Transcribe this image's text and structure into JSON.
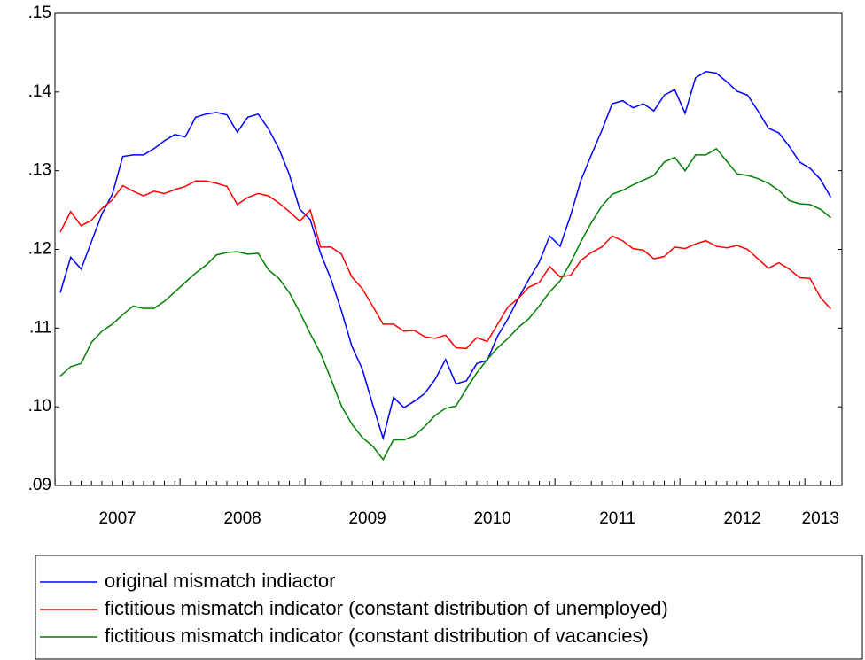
{
  "chart_data": {
    "type": "line",
    "categories": [
      null,
      null,
      null,
      null,
      null,
      null,
      "2007",
      null,
      null,
      null,
      null,
      null,
      null,
      null,
      null,
      null,
      null,
      null,
      "2008",
      null,
      null,
      null,
      null,
      null,
      null,
      null,
      null,
      null,
      null,
      null,
      "2009",
      null,
      null,
      null,
      null,
      null,
      null,
      null,
      null,
      null,
      null,
      null,
      "2010",
      null,
      null,
      null,
      null,
      null,
      null,
      null,
      null,
      null,
      null,
      null,
      "2011",
      null,
      null,
      null,
      null,
      null,
      null,
      null,
      null,
      null,
      null,
      null,
      "2012",
      null,
      null,
      null,
      null,
      null,
      null,
      "2013",
      null
    ],
    "ylim": [
      0.09,
      0.15
    ],
    "yticks": [
      {
        "value": 0.09,
        "label": ".09"
      },
      {
        "value": 0.1,
        "label": ".10"
      },
      {
        "value": 0.11,
        "label": ".11"
      },
      {
        "value": 0.12,
        "label": ".12"
      },
      {
        "value": 0.13,
        "label": ".13"
      },
      {
        "value": 0.14,
        "label": ".14"
      },
      {
        "value": 0.15,
        "label": ".15"
      }
    ],
    "series": [
      {
        "name": "original mismatch indiactor",
        "color": "#0000ff",
        "values": [
          0.1145,
          0.119,
          0.1175,
          0.121,
          0.1245,
          0.127,
          0.1318,
          0.132,
          0.132,
          0.1328,
          0.1338,
          0.1346,
          0.1343,
          0.1368,
          0.1372,
          0.1374,
          0.1371,
          0.1349,
          0.1368,
          0.1372,
          0.1353,
          0.1328,
          0.1295,
          0.1251,
          0.1238,
          0.1195,
          0.1162,
          0.1122,
          0.1077,
          0.1048,
          0.1003,
          0.096,
          0.1012,
          0.0999,
          0.1007,
          0.1017,
          0.1035,
          0.106,
          0.1029,
          0.1033,
          0.1055,
          0.1059,
          0.109,
          0.1112,
          0.1138,
          0.1162,
          0.1184,
          0.1217,
          0.1204,
          0.1243,
          0.1288,
          0.132,
          0.1351,
          0.1385,
          0.1389,
          0.138,
          0.1385,
          0.1376,
          0.1396,
          0.1403,
          0.1373,
          0.1418,
          0.1426,
          0.1424,
          0.1413,
          0.1401,
          0.1396,
          0.1376,
          0.1354,
          0.1348,
          0.1331,
          0.1311,
          0.1303,
          0.1289,
          0.1266
        ]
      },
      {
        "name": "fictitious mismatch indicator (constant distribution of unemployed)",
        "color": "#ff0000",
        "values": [
          0.1222,
          0.1248,
          0.123,
          0.1237,
          0.1252,
          0.1263,
          0.1281,
          0.1274,
          0.1268,
          0.1274,
          0.1271,
          0.1276,
          0.128,
          0.1287,
          0.1287,
          0.1284,
          0.128,
          0.1257,
          0.1266,
          0.1271,
          0.1268,
          0.1259,
          0.1248,
          0.1236,
          0.125,
          0.1203,
          0.1203,
          0.1194,
          0.1165,
          0.115,
          0.1128,
          0.1105,
          0.1105,
          0.1096,
          0.1097,
          0.1089,
          0.1087,
          0.1091,
          0.1075,
          0.1074,
          0.1088,
          0.1083,
          0.1105,
          0.1127,
          0.1138,
          0.1152,
          0.1158,
          0.1178,
          0.1165,
          0.1167,
          0.1186,
          0.1196,
          0.1203,
          0.1217,
          0.1211,
          0.1201,
          0.1199,
          0.1188,
          0.1191,
          0.1203,
          0.1201,
          0.1207,
          0.1211,
          0.1204,
          0.1202,
          0.1205,
          0.12,
          0.1188,
          0.1176,
          0.1183,
          0.1175,
          0.1164,
          0.1163,
          0.1139,
          0.1124
        ]
      },
      {
        "name": "fictitious mismatch indicator (constant distribution of vacancies)",
        "color": "#008000",
        "values": [
          0.1039,
          0.1051,
          0.1055,
          0.1082,
          0.1096,
          0.1105,
          0.1117,
          0.1128,
          0.1125,
          0.1125,
          0.1134,
          0.1146,
          0.1158,
          0.117,
          0.118,
          0.1193,
          0.1196,
          0.1197,
          0.1194,
          0.1195,
          0.1174,
          0.1163,
          0.1145,
          0.112,
          0.1093,
          0.1068,
          0.1035,
          0.1001,
          0.0978,
          0.0961,
          0.095,
          0.0933,
          0.0958,
          0.0958,
          0.0963,
          0.0975,
          0.0989,
          0.0998,
          0.1001,
          0.1023,
          0.1043,
          0.106,
          0.1075,
          0.1087,
          0.1101,
          0.1112,
          0.1128,
          0.1146,
          0.116,
          0.1183,
          0.121,
          0.1234,
          0.1255,
          0.127,
          0.1275,
          0.1282,
          0.1288,
          0.1294,
          0.1311,
          0.1317,
          0.13,
          0.132,
          0.132,
          0.1328,
          0.1312,
          0.1296,
          0.1294,
          0.129,
          0.1284,
          0.1275,
          0.1262,
          0.1258,
          0.1257,
          0.1251,
          0.124
        ]
      }
    ]
  }
}
